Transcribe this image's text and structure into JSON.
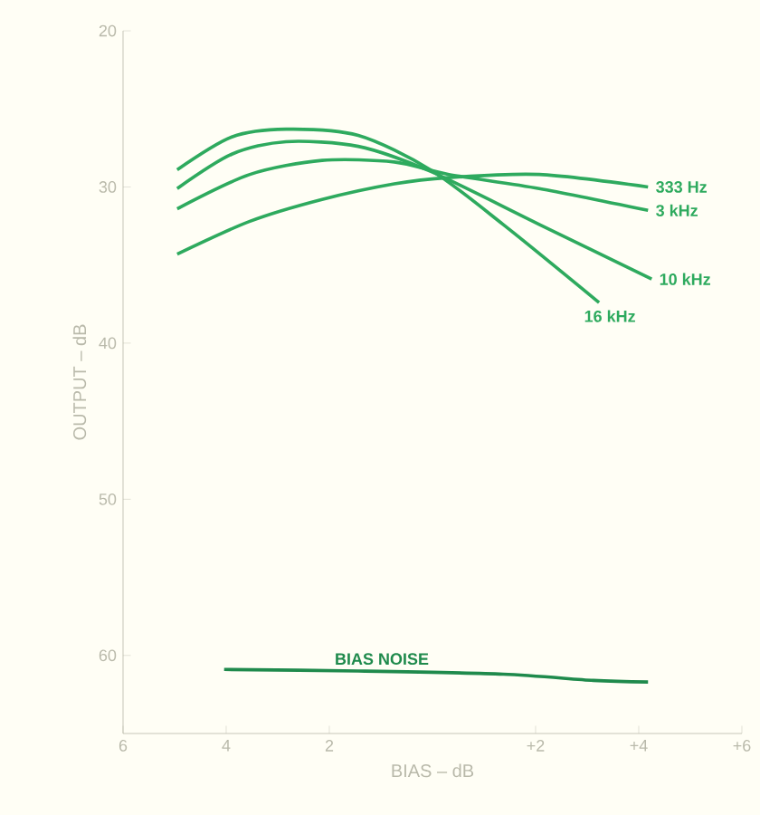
{
  "chart_data": {
    "type": "line",
    "xlabel": "BIAS – dB",
    "ylabel": "OUTPUT – dB",
    "xlim": [
      -6,
      6
    ],
    "ylim": [
      65,
      20
    ],
    "xticks": [
      {
        "value": -6,
        "label": "6"
      },
      {
        "value": -4,
        "label": "4"
      },
      {
        "value": -2,
        "label": "2"
      },
      {
        "value": 2,
        "label": "+2"
      },
      {
        "value": 4,
        "label": "+4"
      },
      {
        "value": 6,
        "label": "+6"
      }
    ],
    "yticks": [
      20,
      30,
      40,
      50,
      60
    ],
    "series": [
      {
        "name": "333 Hz",
        "color": "#2eaa5e",
        "x": [
          -4.95,
          -3.54,
          -2.14,
          -0.74,
          0.32,
          2.07,
          4.18
        ],
        "values": [
          34.3,
          32.2,
          30.8,
          29.8,
          29.4,
          29.2,
          30.0
        ]
      },
      {
        "name": "3 kHz",
        "color": "#2eaa5e",
        "x": [
          -4.95,
          -3.54,
          -2.14,
          -0.74,
          0.32,
          2.07,
          4.18
        ],
        "values": [
          31.4,
          29.2,
          28.3,
          28.4,
          29.2,
          30.1,
          31.5
        ]
      },
      {
        "name": "10 kHz",
        "color": "#2eaa5e",
        "x": [
          -4.95,
          -3.89,
          -2.84,
          -1.44,
          -0.04,
          2.07,
          4.25
        ],
        "values": [
          30.1,
          27.9,
          27.1,
          27.4,
          29.0,
          32.4,
          35.9
        ]
      },
      {
        "name": "16 kHz",
        "color": "#2eaa5e",
        "x": [
          -4.95,
          -3.89,
          -2.84,
          -1.44,
          -0.04,
          1.37,
          3.23
        ],
        "values": [
          28.9,
          26.8,
          26.3,
          26.7,
          28.9,
          32.4,
          37.4
        ]
      },
      {
        "name": "BIAS NOISE",
        "color": "#1f8a4c",
        "x": [
          -4.04,
          -1.44,
          1.37,
          3.12,
          4.18
        ],
        "values": [
          60.9,
          61.0,
          61.2,
          61.6,
          61.7
        ]
      }
    ]
  }
}
